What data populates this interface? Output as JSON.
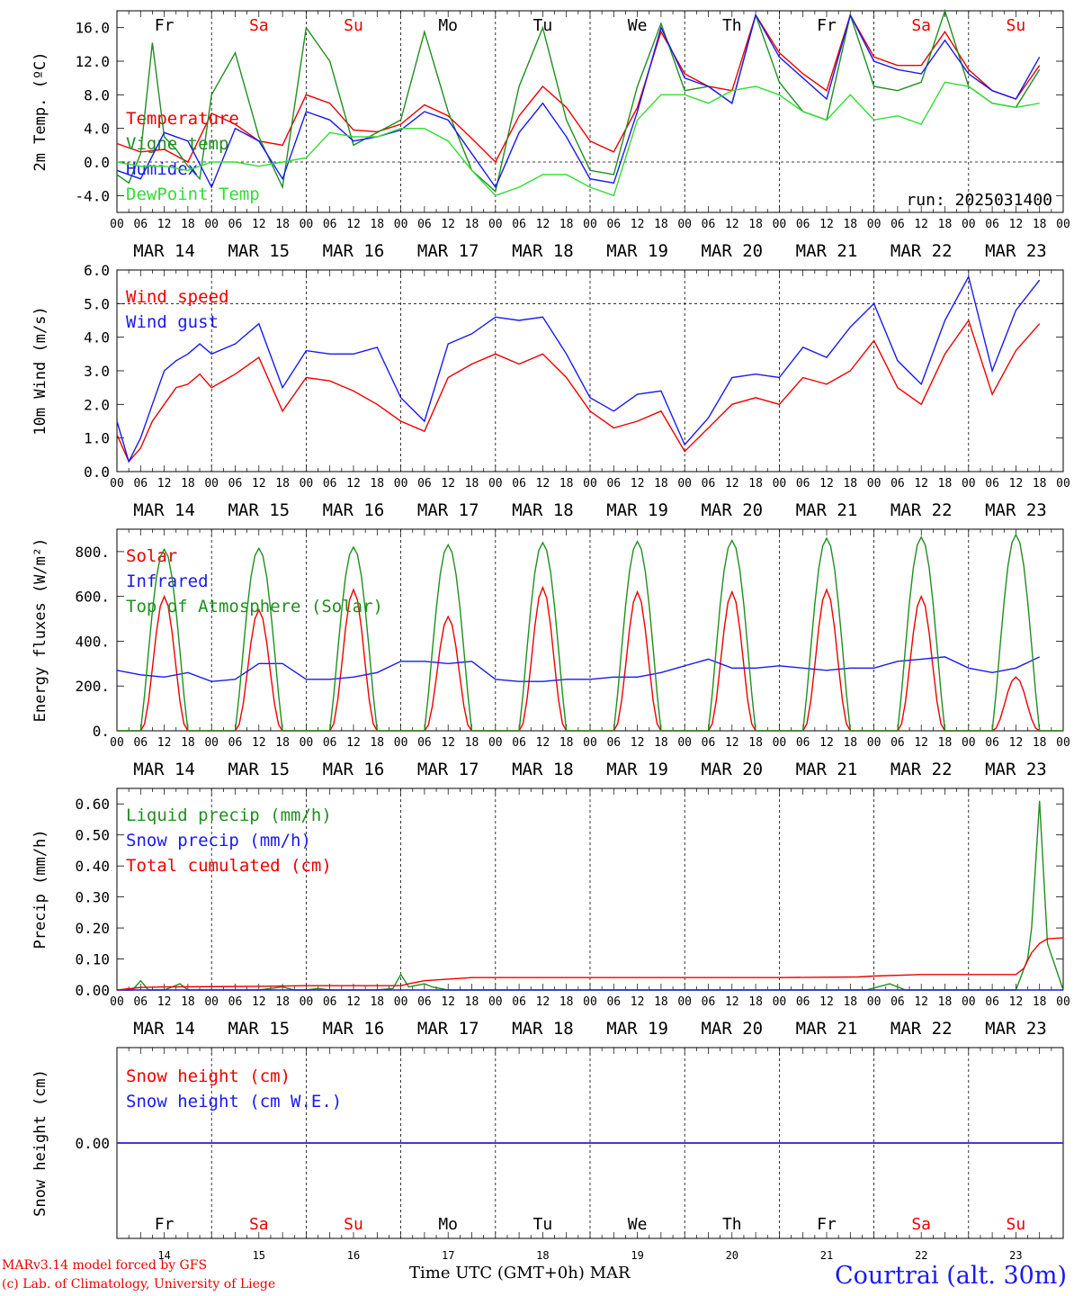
{
  "chart_data": [
    {
      "type": "line",
      "ylabel": "2m Temp. (ºC)",
      "ylim": [
        -6,
        18
      ],
      "yticks": [
        "-4.0",
        "0.0",
        "4.0",
        "8.0",
        "12.0",
        "16.0"
      ],
      "ytick_values": [
        -4,
        0,
        4,
        8,
        12,
        16
      ],
      "dashed_y": [
        0
      ],
      "annotation": "run: 2025031400",
      "day_labels_top": true,
      "series": [
        {
          "name": "Temperature",
          "color": "#ee0000",
          "x": [
            0,
            6,
            12,
            18,
            24,
            30,
            36,
            42,
            48,
            54,
            60,
            66,
            72,
            78,
            84,
            90,
            96,
            102,
            108,
            114,
            120,
            126,
            132,
            138,
            144,
            150,
            156,
            162,
            168,
            174,
            180,
            186,
            192,
            198,
            204,
            210,
            216,
            222,
            228,
            234
          ],
          "values": [
            2.2,
            1.2,
            1.5,
            0.0,
            5.8,
            4.5,
            2.5,
            2.0,
            8.0,
            7.0,
            3.8,
            3.6,
            4.5,
            6.8,
            5.5,
            2.8,
            0.0,
            5.5,
            9.0,
            6.5,
            2.5,
            1.2,
            6.5,
            15.5,
            10.5,
            9.0,
            8.5,
            17.5,
            13.0,
            10.5,
            8.5,
            17.5,
            12.5,
            11.5,
            11.5,
            15.5,
            11.0,
            8.5,
            7.5,
            11.5
          ]
        },
        {
          "name": "Vigne temp",
          "color": "#1f8f1f",
          "x": [
            0,
            3,
            6,
            9,
            12,
            15,
            18,
            21,
            24,
            30,
            36,
            42,
            48,
            54,
            60,
            66,
            72,
            78,
            84,
            90,
            96,
            102,
            108,
            114,
            120,
            126,
            132,
            138,
            144,
            150,
            156,
            162,
            168,
            174,
            180,
            186,
            192,
            198,
            204,
            210,
            216,
            222,
            228,
            234
          ],
          "values": [
            -1.5,
            -2.5,
            1.0,
            14.2,
            3.0,
            1.5,
            -0.5,
            -2.0,
            8.0,
            13.0,
            3.0,
            -3.0,
            16.0,
            12.0,
            2.0,
            3.5,
            5.0,
            15.5,
            6.0,
            -1.0,
            -3.5,
            9.0,
            16.0,
            5.0,
            -1.0,
            -1.5,
            9.0,
            16.5,
            8.5,
            9.0,
            7.0,
            17.5,
            9.5,
            6.0,
            5.0,
            17.5,
            9.0,
            8.5,
            9.5,
            18.0,
            9.0,
            7.0,
            6.5,
            11.0
          ]
        },
        {
          "name": "Humidex",
          "color": "#1a1aee",
          "x": [
            0,
            6,
            12,
            18,
            24,
            30,
            36,
            42,
            48,
            54,
            60,
            66,
            72,
            78,
            84,
            90,
            96,
            102,
            108,
            114,
            120,
            126,
            132,
            138,
            144,
            150,
            156,
            162,
            168,
            174,
            180,
            186,
            192,
            198,
            204,
            210,
            216,
            222,
            228,
            234
          ],
          "values": [
            -1.0,
            -2.0,
            3.5,
            2.5,
            -3.0,
            4.0,
            2.5,
            -2.0,
            6.0,
            5.0,
            2.5,
            3.0,
            3.8,
            6.0,
            5.0,
            1.0,
            -3.0,
            3.5,
            7.0,
            3.0,
            -2.0,
            -2.5,
            6.0,
            16.0,
            10.0,
            9.0,
            7.0,
            17.5,
            12.5,
            10.0,
            7.5,
            17.5,
            12.0,
            11.0,
            10.5,
            14.5,
            10.5,
            8.5,
            7.5,
            12.5
          ]
        },
        {
          "name": "DewPoint Temp",
          "color": "#33dd33",
          "x": [
            0,
            6,
            12,
            18,
            24,
            30,
            36,
            42,
            48,
            54,
            60,
            66,
            72,
            78,
            84,
            90,
            96,
            102,
            108,
            114,
            120,
            126,
            132,
            138,
            144,
            150,
            156,
            162,
            168,
            174,
            180,
            186,
            192,
            198,
            204,
            210,
            216,
            222,
            228,
            234
          ],
          "values": [
            0.0,
            -0.5,
            -0.5,
            -1.0,
            0.0,
            0.0,
            -0.5,
            0.0,
            0.5,
            3.5,
            3.0,
            3.0,
            4.0,
            4.0,
            2.5,
            -1.0,
            -4.0,
            -3.0,
            -1.5,
            -1.5,
            -3.0,
            -4.0,
            5.0,
            8.0,
            8.0,
            7.0,
            8.5,
            9.0,
            8.0,
            6.0,
            5.0,
            8.0,
            5.0,
            5.5,
            4.5,
            9.5,
            9.0,
            7.0,
            6.5,
            7.0
          ]
        }
      ]
    },
    {
      "type": "line",
      "ylabel": "10m Wind (m/s)",
      "ylim": [
        0,
        6
      ],
      "yticks": [
        "0.0",
        "1.0",
        "2.0",
        "3.0",
        "4.0",
        "5.0",
        "6.0"
      ],
      "ytick_values": [
        0,
        1,
        2,
        3,
        4,
        5,
        6
      ],
      "dashed_y": [
        5
      ],
      "series": [
        {
          "name": "Wind speed",
          "color": "#ee0000",
          "x": [
            0,
            3,
            6,
            9,
            12,
            15,
            18,
            21,
            24,
            30,
            36,
            42,
            48,
            54,
            60,
            66,
            72,
            78,
            84,
            90,
            96,
            102,
            108,
            114,
            120,
            126,
            132,
            138,
            144,
            150,
            156,
            162,
            168,
            174,
            180,
            186,
            192,
            198,
            204,
            210,
            216,
            222,
            228,
            234
          ],
          "values": [
            1.1,
            0.3,
            0.7,
            1.5,
            2.0,
            2.5,
            2.6,
            2.9,
            2.5,
            2.9,
            3.4,
            1.8,
            2.8,
            2.7,
            2.4,
            2.0,
            1.5,
            1.2,
            2.8,
            3.2,
            3.5,
            3.2,
            3.5,
            2.8,
            1.8,
            1.3,
            1.5,
            1.8,
            0.6,
            1.3,
            2.0,
            2.2,
            2.0,
            2.8,
            2.6,
            3.0,
            3.9,
            2.5,
            2.0,
            3.5,
            4.5,
            2.3,
            3.6,
            4.4
          ]
        },
        {
          "name": "Wind gust",
          "color": "#1a1aee",
          "x": [
            0,
            3,
            6,
            9,
            12,
            15,
            18,
            21,
            24,
            30,
            36,
            42,
            48,
            54,
            60,
            66,
            72,
            78,
            84,
            90,
            96,
            102,
            108,
            114,
            120,
            126,
            132,
            138,
            144,
            150,
            156,
            162,
            168,
            174,
            180,
            186,
            192,
            198,
            204,
            210,
            216,
            222,
            228,
            234
          ],
          "values": [
            1.5,
            0.3,
            1.0,
            2.0,
            3.0,
            3.3,
            3.5,
            3.8,
            3.5,
            3.8,
            4.4,
            2.5,
            3.6,
            3.5,
            3.5,
            3.7,
            2.2,
            1.5,
            3.8,
            4.1,
            4.6,
            4.5,
            4.6,
            3.5,
            2.2,
            1.8,
            2.3,
            2.4,
            0.8,
            1.6,
            2.8,
            2.9,
            2.8,
            3.7,
            3.4,
            4.3,
            5.0,
            3.3,
            2.6,
            4.5,
            5.8,
            3.0,
            4.8,
            5.7
          ]
        }
      ]
    },
    {
      "type": "line",
      "ylabel": "Energy fluxes (W/m²)",
      "ylim": [
        0,
        900
      ],
      "yticks": [
        "0.",
        "200.",
        "400.",
        "600.",
        "800."
      ],
      "ytick_values": [
        0,
        200,
        400,
        600,
        800
      ],
      "series": [
        {
          "name": "Solar",
          "color": "#ee0000",
          "peaks": [
            600,
            540,
            630,
            510,
            640,
            620,
            620,
            630,
            600,
            240
          ]
        },
        {
          "name": "Infrared",
          "color": "#1a1aee",
          "x": [
            0,
            6,
            12,
            18,
            24,
            30,
            36,
            42,
            48,
            54,
            60,
            66,
            72,
            78,
            84,
            90,
            96,
            102,
            108,
            114,
            120,
            126,
            132,
            138,
            144,
            150,
            156,
            162,
            168,
            174,
            180,
            186,
            192,
            198,
            204,
            210,
            216,
            222,
            228,
            234
          ],
          "values": [
            270,
            250,
            240,
            260,
            220,
            230,
            300,
            300,
            230,
            230,
            240,
            260,
            310,
            310,
            300,
            310,
            230,
            220,
            220,
            230,
            230,
            240,
            240,
            260,
            290,
            320,
            280,
            280,
            290,
            280,
            270,
            280,
            280,
            310,
            320,
            330,
            280,
            260,
            280,
            330
          ]
        },
        {
          "name": "Top of Atmosphere (Solar)",
          "color": "#1f8f1f",
          "peaks": [
            810,
            815,
            820,
            830,
            840,
            845,
            850,
            860,
            865,
            875
          ]
        }
      ]
    },
    {
      "type": "line",
      "ylabel": "Precip (mm/h)",
      "ylim": [
        0,
        0.65
      ],
      "yticks": [
        "0.00",
        "0.10",
        "0.20",
        "0.30",
        "0.40",
        "0.50",
        "0.60"
      ],
      "ytick_values": [
        0,
        0.1,
        0.2,
        0.3,
        0.4,
        0.5,
        0.6
      ],
      "series": [
        {
          "name": "Liquid precip (mm/h)",
          "color": "#1f8f1f",
          "x": [
            0,
            4,
            6,
            8,
            12,
            14,
            16,
            18,
            24,
            30,
            36,
            42,
            45,
            48,
            51,
            54,
            57,
            60,
            66,
            70,
            72,
            74,
            78,
            80,
            84,
            90,
            96,
            102,
            108,
            114,
            120,
            126,
            132,
            138,
            144,
            150,
            156,
            162,
            168,
            174,
            180,
            186,
            190,
            193,
            196,
            200,
            204,
            210,
            216,
            222,
            228,
            228,
            231,
            232,
            234,
            236,
            240
          ],
          "values": [
            0,
            0,
            0.03,
            0,
            0,
            0.01,
            0.02,
            0,
            0,
            0,
            0,
            0.01,
            0,
            0,
            0.005,
            0,
            0,
            0,
            0,
            0.005,
            0.05,
            0.01,
            0.02,
            0.01,
            0,
            0,
            0,
            0,
            0,
            0,
            0,
            0,
            0,
            0,
            0,
            0,
            0,
            0,
            0,
            0,
            0,
            0,
            0,
            0.01,
            0.02,
            0,
            0,
            0,
            0,
            0,
            0,
            0,
            0.1,
            0.2,
            0.61,
            0.15,
            0
          ]
        },
        {
          "name": "Snow precip (mm/h)",
          "color": "#1a1aee",
          "x": [
            0,
            240
          ],
          "values": [
            0,
            0
          ]
        },
        {
          "name": "Total cumulated (cm)",
          "color": "#ee0000",
          "x": [
            0,
            6,
            12,
            36,
            48,
            72,
            74,
            78,
            84,
            90,
            96,
            120,
            144,
            168,
            188,
            192,
            204,
            216,
            228,
            230,
            232,
            234,
            236,
            240
          ],
          "values": [
            0.0,
            0.008,
            0.01,
            0.012,
            0.014,
            0.014,
            0.02,
            0.03,
            0.035,
            0.04,
            0.04,
            0.04,
            0.04,
            0.04,
            0.042,
            0.045,
            0.05,
            0.05,
            0.05,
            0.07,
            0.12,
            0.15,
            0.165,
            0.168
          ]
        }
      ]
    },
    {
      "type": "line",
      "ylabel": "Snow height (cm)",
      "ylim": [
        -1,
        1
      ],
      "yticks": [
        "0.00"
      ],
      "ytick_values": [
        0
      ],
      "series": [
        {
          "name": "Snow height (cm)",
          "color": "#ee0000",
          "x": [
            0,
            240
          ],
          "values": [
            0,
            0
          ]
        },
        {
          "name": "Snow height (cm W.E.)",
          "color": "#1a1aee",
          "x": [
            0,
            240
          ],
          "values": [
            0,
            0
          ]
        }
      ]
    }
  ],
  "x_axis": {
    "hour_labels": [
      "00",
      "06",
      "12",
      "18"
    ],
    "last_hour_label": "00",
    "date_labels": [
      "MAR 14",
      "MAR 15",
      "MAR 16",
      "MAR 17",
      "MAR 18",
      "MAR 19",
      "MAR 20",
      "MAR 21",
      "MAR 22",
      "MAR 23"
    ],
    "weekdays": [
      {
        "label": "Fr",
        "color": "#000000"
      },
      {
        "label": "Sa",
        "color": "#ee0000"
      },
      {
        "label": "Su",
        "color": "#ee0000"
      },
      {
        "label": "Mo",
        "color": "#000000"
      },
      {
        "label": "Tu",
        "color": "#000000"
      },
      {
        "label": "We",
        "color": "#000000"
      },
      {
        "label": "Th",
        "color": "#000000"
      },
      {
        "label": "Fr",
        "color": "#000000"
      },
      {
        "label": "Sa",
        "color": "#ee0000"
      },
      {
        "label": "Su",
        "color": "#ee0000"
      }
    ],
    "day_numbers": [
      "14",
      "15",
      "16",
      "17",
      "18",
      "19",
      "20",
      "21",
      "22",
      "23"
    ],
    "month": "MAR",
    "title": "Time UTC (GMT+0h)"
  },
  "footer": {
    "credit_line1": "MARv3.14 model forced by GFS",
    "credit_line2": "(c) Lab. of Climatology, University of Liege",
    "xaxis_title": "Time UTC (GMT+0h)",
    "xaxis_month": "MAR",
    "station": "Courtrai (alt. 30m)"
  },
  "colors": {
    "red": "#ee0000",
    "green": "#1f8f1f",
    "blue": "#1a1aee",
    "lightgreen": "#33dd33"
  }
}
